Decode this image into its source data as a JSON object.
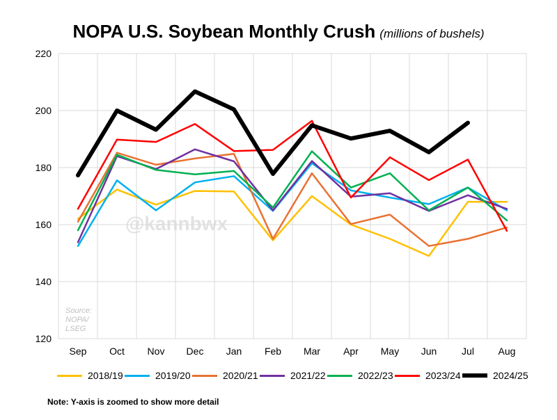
{
  "title": "NOPA U.S. Soybean Monthly Crush",
  "subtitle": "(millions of bushels)",
  "note": "Note: Y-axis is zoomed to show more detail",
  "watermark": "@kannbwx",
  "source_lines": [
    "Source:",
    "NOPA/",
    "LSEG"
  ],
  "chart_data": {
    "type": "line",
    "title": "NOPA U.S. Soybean Monthly Crush",
    "subtitle": "(millions of bushels)",
    "xlabel": "",
    "ylabel": "",
    "ylim": [
      120,
      220
    ],
    "yticks": [
      120,
      140,
      160,
      180,
      200,
      220
    ],
    "grid": true,
    "legend_position": "bottom",
    "categories": [
      "Sep",
      "Oct",
      "Nov",
      "Dec",
      "Jan",
      "Feb",
      "Mar",
      "Apr",
      "May",
      "Jun",
      "Jul",
      "Aug"
    ],
    "series": [
      {
        "name": "2018/19",
        "color": "#FFC000",
        "values": [
          162.0,
          172.3,
          167.0,
          171.8,
          171.6,
          154.5,
          170.0,
          160.0,
          155.0,
          149.0,
          168.0,
          168.0
        ]
      },
      {
        "name": "2019/20",
        "color": "#00B0F0",
        "values": [
          152.5,
          175.5,
          165.0,
          174.8,
          177.0,
          164.8,
          181.5,
          172.0,
          169.5,
          167.2,
          173.0,
          165.0
        ]
      },
      {
        "name": "2020/21",
        "color": "#E97132",
        "values": [
          161.0,
          185.2,
          181.0,
          183.2,
          184.8,
          155.0,
          178.0,
          160.2,
          163.5,
          152.5,
          155.0,
          159.0
        ]
      },
      {
        "name": "2021/22",
        "color": "#7030A0",
        "values": [
          153.8,
          184.0,
          179.5,
          186.4,
          182.2,
          165.0,
          182.3,
          169.8,
          171.0,
          164.8,
          170.3,
          165.5
        ]
      },
      {
        "name": "2022/23",
        "color": "#00B050",
        "values": [
          158.0,
          184.5,
          179.2,
          177.6,
          178.8,
          166.0,
          185.7,
          173.0,
          178.0,
          165.0,
          173.0,
          161.5
        ]
      },
      {
        "name": "2023/24",
        "color": "#FF0000",
        "values": [
          165.5,
          189.8,
          189.0,
          195.3,
          185.8,
          186.2,
          196.4,
          169.5,
          183.6,
          175.6,
          182.8,
          157.8
        ]
      },
      {
        "name": "2024/25",
        "color": "#000000",
        "values": [
          177.3,
          200.0,
          193.3,
          206.7,
          200.4,
          177.8,
          194.8,
          190.2,
          192.9,
          185.4,
          195.7,
          null
        ]
      }
    ]
  }
}
